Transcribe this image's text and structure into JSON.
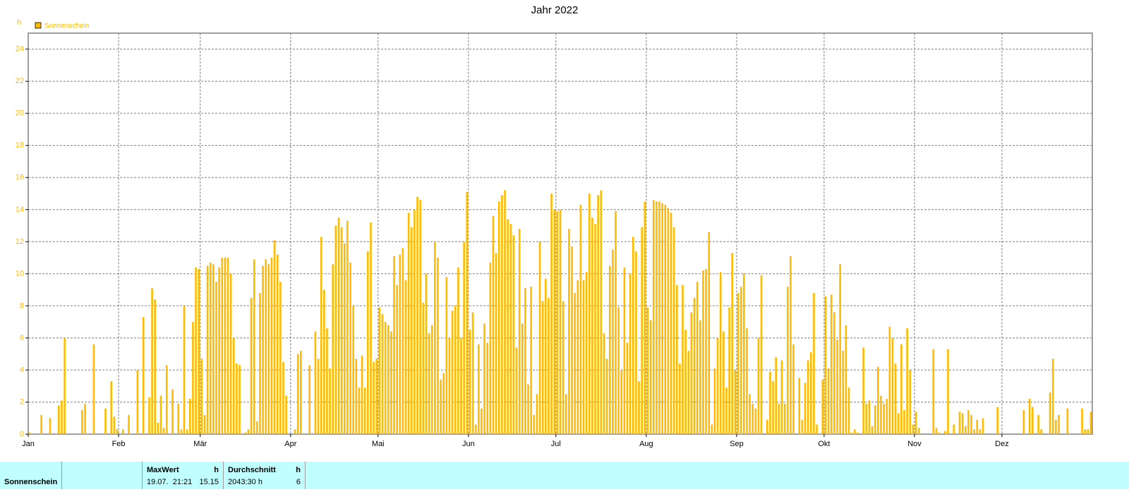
{
  "chart_data": {
    "type": "bar",
    "title": "Jahr 2022",
    "y_label": "h",
    "categories": [
      "Jan",
      null,
      null,
      null,
      null,
      null,
      null,
      null,
      null,
      null,
      null,
      null,
      null,
      null,
      null,
      null,
      null,
      null,
      null,
      null,
      null,
      null,
      null,
      null,
      null,
      null,
      null,
      null,
      null,
      null,
      null,
      "Feb",
      null,
      null,
      null,
      null,
      null,
      null,
      null,
      null,
      null,
      null,
      null,
      null,
      null,
      null,
      null,
      null,
      null,
      null,
      null,
      null,
      null,
      null,
      null,
      null,
      null,
      null,
      null,
      "Mär",
      null,
      null,
      null,
      null,
      null,
      null,
      null,
      null,
      null,
      null,
      null,
      null,
      null,
      null,
      null,
      null,
      null,
      null,
      null,
      null,
      null,
      null,
      null,
      null,
      null,
      null,
      null,
      null,
      null,
      null,
      "Apr",
      null,
      null,
      null,
      null,
      null,
      null,
      null,
      null,
      null,
      null,
      null,
      null,
      null,
      null,
      null,
      null,
      null,
      null,
      null,
      null,
      null,
      null,
      null,
      null,
      null,
      null,
      null,
      null,
      null,
      "Mai",
      null,
      null,
      null,
      null,
      null,
      null,
      null,
      null,
      null,
      null,
      null,
      null,
      null,
      null,
      null,
      null,
      null,
      null,
      null,
      null,
      null,
      null,
      null,
      null,
      null,
      null,
      null,
      null,
      null,
      null,
      "Jun",
      null,
      null,
      null,
      null,
      null,
      null,
      null,
      null,
      null,
      null,
      null,
      null,
      null,
      null,
      null,
      null,
      null,
      null,
      null,
      null,
      null,
      null,
      null,
      null,
      null,
      null,
      null,
      null,
      null,
      "Jul",
      null,
      null,
      null,
      null,
      null,
      null,
      null,
      null,
      null,
      null,
      null,
      null,
      null,
      null,
      null,
      null,
      null,
      null,
      null,
      null,
      null,
      null,
      null,
      null,
      null,
      null,
      null,
      null,
      null,
      null,
      "Aug",
      null,
      null,
      null,
      null,
      null,
      null,
      null,
      null,
      null,
      null,
      null,
      null,
      null,
      null,
      null,
      null,
      null,
      null,
      null,
      null,
      null,
      null,
      null,
      null,
      null,
      null,
      null,
      null,
      null,
      null,
      "Sep",
      null,
      null,
      null,
      null,
      null,
      null,
      null,
      null,
      null,
      null,
      null,
      null,
      null,
      null,
      null,
      null,
      null,
      null,
      null,
      null,
      null,
      null,
      null,
      null,
      null,
      null,
      null,
      null,
      null,
      "Okt",
      null,
      null,
      null,
      null,
      null,
      null,
      null,
      null,
      null,
      null,
      null,
      null,
      null,
      null,
      null,
      null,
      null,
      null,
      null,
      null,
      null,
      null,
      null,
      null,
      null,
      null,
      null,
      null,
      null,
      null,
      "Nov",
      null,
      null,
      null,
      null,
      null,
      null,
      null,
      null,
      null,
      null,
      null,
      null,
      null,
      null,
      null,
      null,
      null,
      null,
      null,
      null,
      null,
      null,
      null,
      null,
      null,
      null,
      null,
      null,
      null,
      "Dez",
      null,
      null,
      null,
      null,
      null,
      null,
      null,
      null,
      null,
      null,
      null,
      null,
      null,
      null,
      null,
      null,
      null,
      null,
      null,
      null,
      null,
      null,
      null,
      null,
      null,
      null,
      null,
      null,
      null,
      null
    ],
    "series": [
      {
        "name": "Sonnenschein",
        "color": "#ffbb00",
        "values": [
          0.1,
          0,
          0,
          0,
          1.2,
          0,
          0,
          1.0,
          0,
          0,
          1.8,
          2.1,
          6.0,
          0,
          0,
          0,
          0,
          0,
          1.5,
          1.9,
          0,
          0,
          5.6,
          0,
          0,
          0,
          1.6,
          0,
          3.3,
          1.1,
          0.3,
          0,
          0.3,
          0,
          1.2,
          0,
          0,
          4.0,
          0,
          7.3,
          0,
          2.3,
          9.1,
          8.4,
          0.7,
          2.4,
          0.4,
          4.3,
          0,
          2.8,
          0,
          1.9,
          0.3,
          8.0,
          0.3,
          2.2,
          7.0,
          10.4,
          10.3,
          4.7,
          1.2,
          10.5,
          10.7,
          10.6,
          9.5,
          10.4,
          11.0,
          11.0,
          11.0,
          10.0,
          6.0,
          4.4,
          4.3,
          0,
          0.1,
          0.3,
          8.5,
          10.9,
          0.8,
          8.8,
          10.5,
          10.9,
          10.6,
          11.0,
          12.1,
          11.2,
          9.5,
          4.5,
          2.4,
          0,
          0,
          0.3,
          5.0,
          5.2,
          0,
          0,
          4.3,
          0,
          6.4,
          4.7,
          12.3,
          9.0,
          6.6,
          4.1,
          10.6,
          13.0,
          13.5,
          12.9,
          11.9,
          13.3,
          10.7,
          8.0,
          4.7,
          2.9,
          4.9,
          2.9,
          11.4,
          13.2,
          4.5,
          4.7,
          7.9,
          7.5,
          7.0,
          6.8,
          6.4,
          11.1,
          9.3,
          11.2,
          11.6,
          9.6,
          13.8,
          12.9,
          14.0,
          14.8,
          14.6,
          8.2,
          10.0,
          6.3,
          6.8,
          12.0,
          11.0,
          3.4,
          3.8,
          9.8,
          6.0,
          7.7,
          8.0,
          10.4,
          6.0,
          12.0,
          15.1,
          6.5,
          7.6,
          0.6,
          5.6,
          1.6,
          6.9,
          5.7,
          10.7,
          13.6,
          11.3,
          14.5,
          14.9,
          15.2,
          13.4,
          13.1,
          12.4,
          5.4,
          12.8,
          6.9,
          9.1,
          3.1,
          9.2,
          1.2,
          2.5,
          12.0,
          8.3,
          9.7,
          8.5,
          15.0,
          14.0,
          13.9,
          14.0,
          8.3,
          2.5,
          12.8,
          11.7,
          8.8,
          9.6,
          14.3,
          9.6,
          10.1,
          15.0,
          13.5,
          13.1,
          14.9,
          15.2,
          6.3,
          4.7,
          10.5,
          11.5,
          13.9,
          7.9,
          4.0,
          10.4,
          5.7,
          10.0,
          12.3,
          11.4,
          3.3,
          12.9,
          14.5,
          7.9,
          7.1,
          14.6,
          14.5,
          14.5,
          14.4,
          14.3,
          14.1,
          13.8,
          12.9,
          9.3,
          4.4,
          9.3,
          6.5,
          5.2,
          7.6,
          8.5,
          9.5,
          7.1,
          10.2,
          10.3,
          12.6,
          0.6,
          4.1,
          6.0,
          10.1,
          6.4,
          2.9,
          7.9,
          11.3,
          4.0,
          8.8,
          9.2,
          10.0,
          6.6,
          2.5,
          1.9,
          1.6,
          6.0,
          9.9,
          0,
          0.9,
          3.9,
          3.3,
          4.8,
          1.9,
          4.6,
          1.9,
          9.2,
          11.1,
          5.6,
          0,
          3.5,
          0.9,
          3.2,
          4.6,
          5.1,
          8.8,
          0.6,
          0,
          3.4,
          8.6,
          4.1,
          8.7,
          7.6,
          5.9,
          10.6,
          5.2,
          6.8,
          2.9,
          0.1,
          0.3,
          0.1,
          0,
          5.4,
          1.9,
          2.1,
          0.5,
          1.8,
          4.2,
          2.4,
          1.9,
          2.2,
          6.7,
          6.0,
          4.4,
          1.3,
          5.6,
          1.5,
          6.6,
          4.0,
          0.6,
          1.4,
          0.4,
          0,
          0,
          0,
          0,
          5.3,
          0.4,
          0.1,
          0,
          0.2,
          5.3,
          0,
          0.6,
          0,
          1.4,
          1.3,
          0.5,
          1.5,
          1.2,
          0.3,
          0.9,
          0.3,
          1.0,
          0,
          0,
          0,
          0,
          1.7,
          0,
          0,
          0,
          0,
          0,
          0,
          0,
          0,
          1.5,
          0,
          2.2,
          1.7,
          0,
          1.2,
          0.3,
          0,
          0,
          2.6,
          4.7,
          0.9,
          1.2,
          0,
          0,
          1.6,
          0,
          0,
          0,
          0,
          1.6,
          0.3,
          0.3,
          1.4
        ]
      }
    ],
    "ylim": [
      0,
      25
    ],
    "yticks": [
      0,
      2,
      4,
      6,
      8,
      10,
      12,
      14,
      16,
      18,
      20,
      22,
      24
    ],
    "grid": true
  },
  "footer": {
    "label": "Sonnenschein",
    "max_header": "MaxWert",
    "max_unit": "h",
    "max_date": "19.07.  21:21",
    "max_value": "15.15",
    "avg_header": "Durchschnitt",
    "avg_unit": "h",
    "avg_total": "2043:30 h",
    "avg_value": "6"
  }
}
